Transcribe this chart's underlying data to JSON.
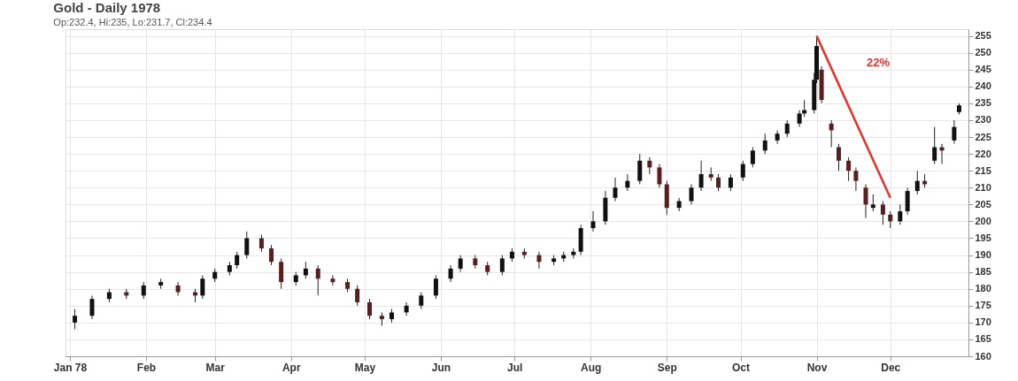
{
  "chart_data": {
    "type": "candlestick",
    "title": "Gold - Daily 1978",
    "subtitle": "Op:232.4, Hi:235, Lo:231.7, Cl:234.4",
    "x": [
      "1978-01-03",
      "1978-01-10",
      "1978-01-17",
      "1978-01-24",
      "1978-01-31",
      "1978-02-07",
      "1978-02-14",
      "1978-02-21",
      "1978-02-24",
      "1978-03-01",
      "1978-03-07",
      "1978-03-10",
      "1978-03-14",
      "1978-03-20",
      "1978-03-24",
      "1978-03-28",
      "1978-04-03",
      "1978-04-07",
      "1978-04-12",
      "1978-04-18",
      "1978-04-24",
      "1978-04-28",
      "1978-05-03",
      "1978-05-08",
      "1978-05-12",
      "1978-05-18",
      "1978-05-24",
      "1978-05-30",
      "1978-06-05",
      "1978-06-09",
      "1978-06-15",
      "1978-06-20",
      "1978-06-26",
      "1978-06-30",
      "1978-07-05",
      "1978-07-11",
      "1978-07-17",
      "1978-07-21",
      "1978-07-25",
      "1978-07-28",
      "1978-08-02",
      "1978-08-07",
      "1978-08-11",
      "1978-08-16",
      "1978-08-21",
      "1978-08-25",
      "1978-08-29",
      "1978-09-01",
      "1978-09-06",
      "1978-09-11",
      "1978-09-15",
      "1978-09-19",
      "1978-09-22",
      "1978-09-27",
      "1978-10-02",
      "1978-10-06",
      "1978-10-11",
      "1978-10-16",
      "1978-10-20",
      "1978-10-25",
      "1978-10-27",
      "1978-10-31",
      "1978-11-01",
      "1978-11-03",
      "1978-11-07",
      "1978-11-10",
      "1978-11-14",
      "1978-11-17",
      "1978-11-21",
      "1978-11-24",
      "1978-11-28",
      "1978-12-01",
      "1978-12-05",
      "1978-12-08",
      "1978-12-12",
      "1978-12-15",
      "1978-12-19",
      "1978-12-22",
      "1978-12-27",
      "1978-12-29"
    ],
    "ohlc": [
      [
        170,
        174,
        168,
        172
      ],
      [
        172,
        178,
        171,
        177
      ],
      [
        177,
        180,
        176,
        179
      ],
      [
        179,
        180,
        177,
        178
      ],
      [
        178,
        182,
        177,
        181
      ],
      [
        181,
        183,
        180,
        182
      ],
      [
        181,
        182,
        178,
        179
      ],
      [
        179,
        180,
        176,
        178
      ],
      [
        178,
        184,
        177,
        183
      ],
      [
        183,
        186,
        182,
        185
      ],
      [
        185,
        188,
        184,
        187
      ],
      [
        187,
        191,
        186,
        190
      ],
      [
        190,
        197,
        189,
        195
      ],
      [
        195,
        196,
        191,
        192
      ],
      [
        192,
        193,
        187,
        188
      ],
      [
        188,
        189,
        180,
        182
      ],
      [
        182,
        185,
        181,
        184
      ],
      [
        184,
        188,
        183,
        186
      ],
      [
        186,
        187,
        178,
        183
      ],
      [
        183,
        184,
        181,
        182
      ],
      [
        182,
        183,
        179,
        180
      ],
      [
        180,
        181,
        175,
        176
      ],
      [
        176,
        177,
        171,
        172
      ],
      [
        172,
        173,
        169,
        171
      ],
      [
        171,
        174,
        170,
        173
      ],
      [
        173,
        176,
        172,
        175
      ],
      [
        175,
        179,
        174,
        178
      ],
      [
        178,
        184,
        177,
        183
      ],
      [
        183,
        187,
        182,
        186
      ],
      [
        186,
        190,
        185,
        189
      ],
      [
        189,
        190,
        186,
        187
      ],
      [
        187,
        188,
        184,
        185
      ],
      [
        185,
        190,
        184,
        189
      ],
      [
        189,
        192,
        188,
        191
      ],
      [
        191,
        192,
        189,
        190
      ],
      [
        190,
        191,
        186,
        188
      ],
      [
        188,
        190,
        187,
        189
      ],
      [
        189,
        191,
        188,
        190
      ],
      [
        190,
        192,
        189,
        191
      ],
      [
        191,
        199,
        190,
        198
      ],
      [
        198,
        203,
        197,
        200
      ],
      [
        200,
        209,
        199,
        207
      ],
      [
        207,
        213,
        206,
        210
      ],
      [
        210,
        214,
        209,
        212
      ],
      [
        212,
        220,
        211,
        218
      ],
      [
        218,
        219,
        214,
        216
      ],
      [
        216,
        217,
        210,
        211
      ],
      [
        211,
        212,
        202,
        204
      ],
      [
        204,
        207,
        203,
        206
      ],
      [
        206,
        211,
        205,
        210
      ],
      [
        210,
        218,
        209,
        214
      ],
      [
        214,
        216,
        212,
        213
      ],
      [
        213,
        214,
        209,
        210
      ],
      [
        210,
        214,
        209,
        213
      ],
      [
        213,
        218,
        212,
        217
      ],
      [
        217,
        222,
        216,
        221
      ],
      [
        221,
        226,
        220,
        224
      ],
      [
        224,
        227,
        223,
        226
      ],
      [
        226,
        230,
        225,
        229
      ],
      [
        229,
        233,
        228,
        232
      ],
      [
        232,
        236,
        231,
        233
      ],
      [
        233,
        244,
        232,
        242
      ],
      [
        242,
        255,
        241,
        252
      ],
      [
        245,
        246,
        235,
        236
      ],
      [
        229,
        230,
        222,
        227
      ],
      [
        222,
        223,
        215,
        218
      ],
      [
        218,
        219,
        212,
        215
      ],
      [
        215,
        216,
        209,
        212
      ],
      [
        210,
        211,
        201,
        205
      ],
      [
        204,
        208,
        203,
        205
      ],
      [
        205,
        206,
        199,
        202
      ],
      [
        202,
        203,
        198,
        200
      ],
      [
        200,
        205,
        199,
        203
      ],
      [
        203,
        210,
        202,
        209
      ],
      [
        209,
        215,
        208,
        212
      ],
      [
        212,
        214,
        210,
        211
      ],
      [
        218,
        228,
        217,
        222
      ],
      [
        222,
        223,
        217,
        221
      ],
      [
        224,
        230,
        223,
        228
      ],
      [
        232.4,
        235,
        231.7,
        234.4
      ]
    ],
    "series": [
      {
        "type": "line",
        "color": "#e8302a",
        "x": [
          "1978-11-01",
          "1978-12-01"
        ],
        "values": [
          255,
          207
        ]
      }
    ],
    "annotations": [
      "22%"
    ],
    "xlim": [
      "1978-01-01",
      "1978-12-31"
    ],
    "xticks": [
      {
        "value": "1978-01-01",
        "label": "Jan 78"
      },
      {
        "value": "1978-02-01",
        "label": "Feb"
      },
      {
        "value": "1978-03-01",
        "label": "Mar"
      },
      {
        "value": "1978-04-01",
        "label": "Apr"
      },
      {
        "value": "1978-05-01",
        "label": "May"
      },
      {
        "value": "1978-06-01",
        "label": "Jun"
      },
      {
        "value": "1978-07-01",
        "label": "Jul"
      },
      {
        "value": "1978-08-01",
        "label": "Aug"
      },
      {
        "value": "1978-09-01",
        "label": "Sep"
      },
      {
        "value": "1978-10-01",
        "label": "Oct"
      },
      {
        "value": "1978-11-01",
        "label": "Nov"
      },
      {
        "value": "1978-12-01",
        "label": "Dec"
      }
    ],
    "ylim": [
      160,
      257
    ],
    "yticks": [
      160,
      165,
      170,
      175,
      180,
      185,
      190,
      195,
      200,
      205,
      210,
      215,
      220,
      225,
      230,
      235,
      240,
      245,
      250,
      255
    ],
    "grid": true
  }
}
